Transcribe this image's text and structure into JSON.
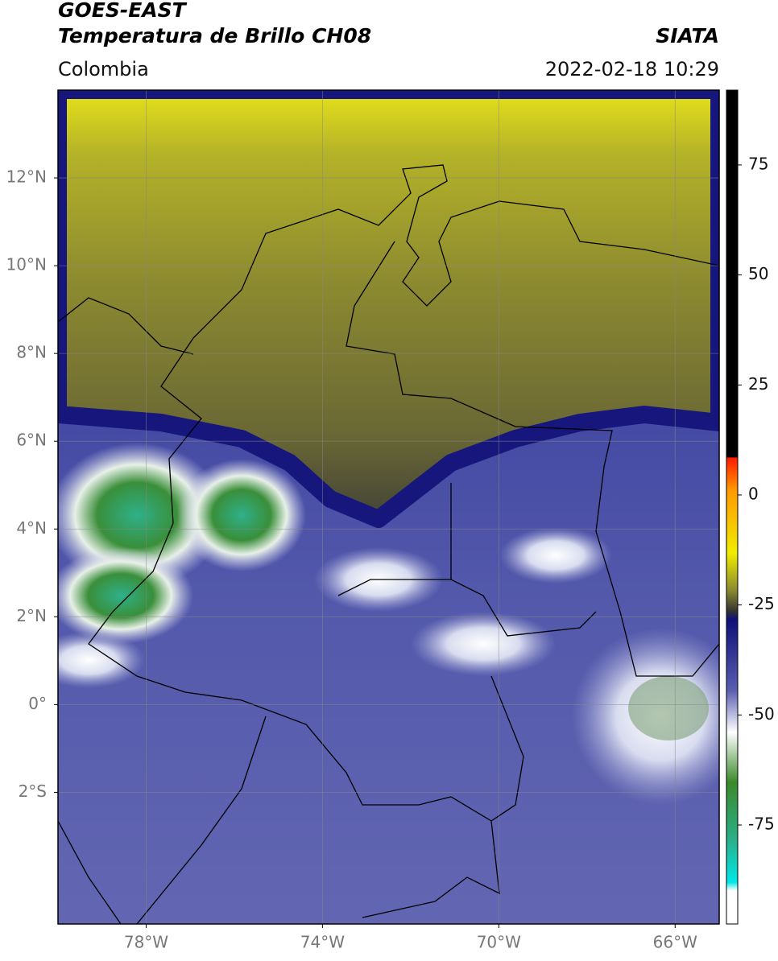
{
  "header": {
    "satellite": "GOES-EAST",
    "title": "Temperatura de Brillo CH08",
    "source": "SIATA",
    "region": "Colombia",
    "datetime": "2022-02-18 10:29"
  },
  "map": {
    "xlim": [
      -80,
      -65
    ],
    "ylim": [
      -5,
      14
    ],
    "xticks": [
      {
        "value": -78,
        "label": "78°W"
      },
      {
        "value": -74,
        "label": "74°W"
      },
      {
        "value": -70,
        "label": "70°W"
      },
      {
        "value": -66,
        "label": "66°W"
      }
    ],
    "yticks": [
      {
        "value": 12,
        "label": "12°N"
      },
      {
        "value": 10,
        "label": "10°N"
      },
      {
        "value": 8,
        "label": "8°N"
      },
      {
        "value": 6,
        "label": "6°N"
      },
      {
        "value": 4,
        "label": "4°N"
      },
      {
        "value": 2,
        "label": "2°N"
      },
      {
        "value": 0,
        "label": "0°"
      },
      {
        "value": -2,
        "label": "2°S"
      }
    ],
    "grid": true
  },
  "colorbar": {
    "lim": [
      -97.5,
      92
    ],
    "ticks": [
      75,
      50,
      25,
      0,
      -25,
      -50,
      -75
    ]
  }
}
